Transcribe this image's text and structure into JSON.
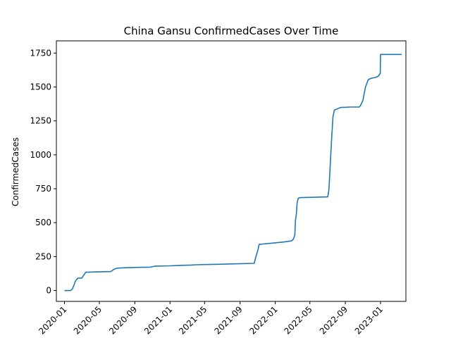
{
  "chart_data": {
    "type": "line",
    "title": "China Gansu ConfirmedCases Over Time",
    "xlabel": "",
    "ylabel": "ConfirmedCases",
    "ylim": [
      -80,
      1840
    ],
    "xlim": [
      "2019-12-04",
      "2023-03-30"
    ],
    "grid": false,
    "yticks": [
      0,
      250,
      500,
      750,
      1000,
      1250,
      1500,
      1750
    ],
    "xticks": [
      "2020-01",
      "2020-05",
      "2020-09",
      "2021-01",
      "2021-05",
      "2021-09",
      "2022-01",
      "2022-05",
      "2022-09",
      "2023-01"
    ],
    "series": [
      {
        "color": "#1f77b4",
        "x": [
          "2020-01-01",
          "2020-01-22",
          "2020-01-28",
          "2020-02-03",
          "2020-02-08",
          "2020-02-16",
          "2020-02-20",
          "2020-03-01",
          "2020-03-15",
          "2020-06-10",
          "2020-06-20",
          "2020-07-01",
          "2020-08-01",
          "2020-09-01",
          "2020-10-01",
          "2020-10-25",
          "2020-11-10",
          "2021-01-01",
          "2021-02-01",
          "2021-03-15",
          "2021-04-01",
          "2021-06-01",
          "2021-07-01",
          "2021-08-01",
          "2021-10-20",
          "2021-10-26",
          "2021-11-02",
          "2021-11-06",
          "2021-11-20",
          "2021-12-01",
          "2022-02-01",
          "2022-02-25",
          "2022-03-01",
          "2022-03-05",
          "2022-03-10",
          "2022-03-12",
          "2022-03-15",
          "2022-03-18",
          "2022-03-22",
          "2022-03-28",
          "2022-04-05",
          "2022-07-02",
          "2022-07-06",
          "2022-07-10",
          "2022-07-15",
          "2022-07-20",
          "2022-07-25",
          "2022-08-01",
          "2022-08-10",
          "2022-08-20",
          "2022-09-01",
          "2022-09-15",
          "2022-10-01",
          "2022-10-20",
          "2022-10-25",
          "2022-11-01",
          "2022-11-05",
          "2022-11-10",
          "2022-11-15",
          "2022-11-20",
          "2022-12-01",
          "2022-12-15",
          "2022-12-25",
          "2022-12-31",
          "2023-01-01",
          "2023-01-15",
          "2023-02-01",
          "2023-02-15",
          "2023-03-01",
          "2023-03-15"
        ],
        "y": [
          0,
          0,
          10,
          40,
          70,
          90,
          92,
          92,
          135,
          140,
          155,
          165,
          168,
          170,
          171,
          172,
          180,
          182,
          185,
          188,
          190,
          193,
          194,
          196,
          200,
          250,
          300,
          340,
          343,
          345,
          358,
          365,
          370,
          380,
          410,
          520,
          560,
          650,
          680,
          685,
          685,
          690,
          740,
          900,
          1100,
          1280,
          1330,
          1335,
          1345,
          1350,
          1350,
          1352,
          1352,
          1352,
          1370,
          1400,
          1450,
          1500,
          1530,
          1555,
          1565,
          1570,
          1580,
          1600,
          1740,
          1740,
          1740,
          1740,
          1740,
          1740
        ]
      }
    ]
  }
}
